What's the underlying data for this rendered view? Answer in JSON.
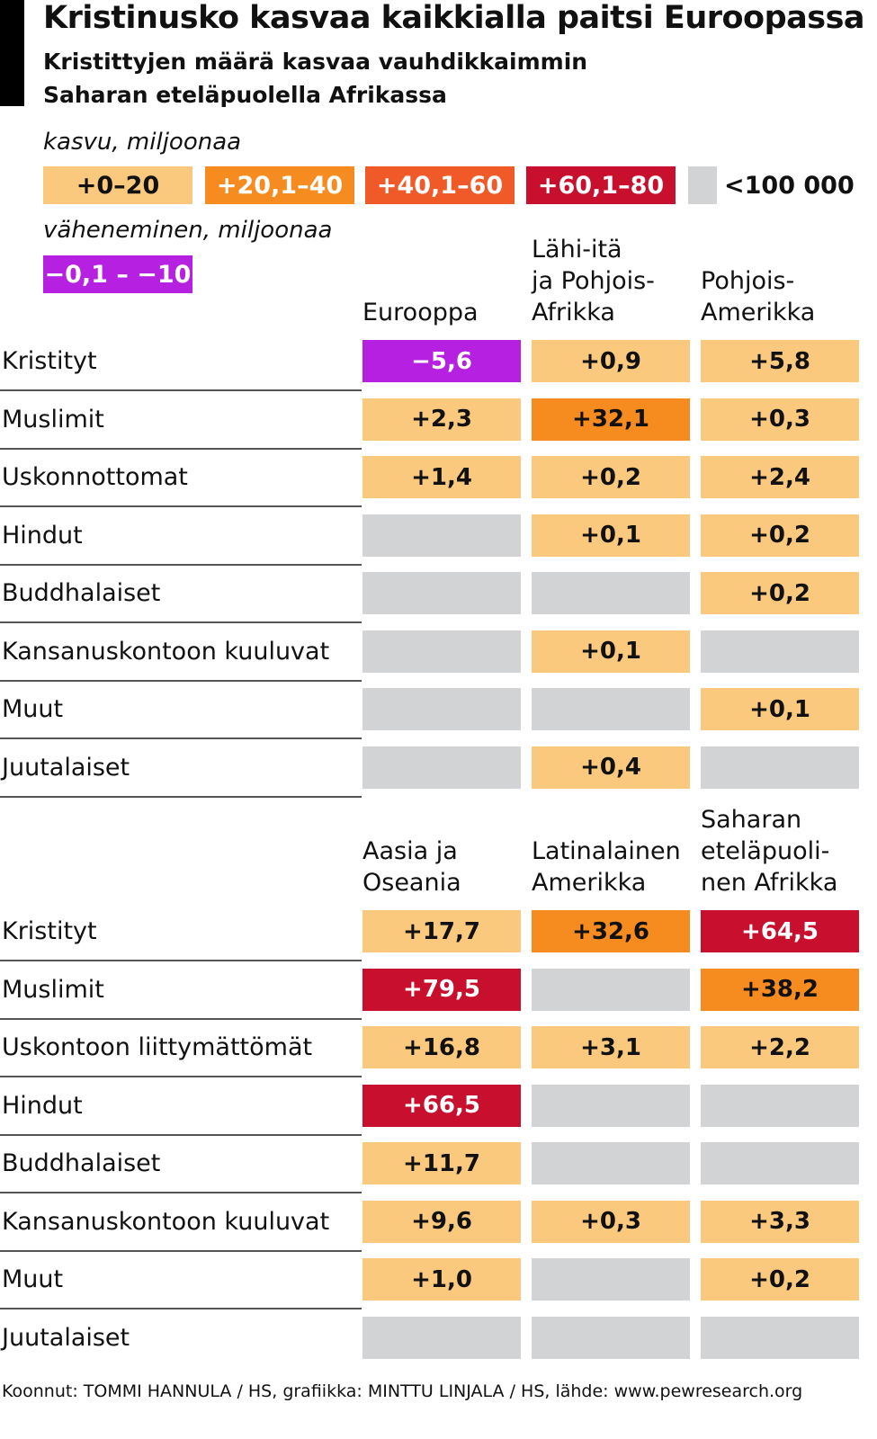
{
  "header": {
    "title": "Kristinusko kasvaa kaikkialla paitsi Euroopassa",
    "subtitle": [
      "Kristittyjen määrä kasvaa vauhdikkaimmin",
      "Saharan eteläpuolella Afrikassa"
    ]
  },
  "legend": {
    "growth_label": "kasvu, miljoonaa",
    "growth": [
      {
        "label": "+0–20",
        "color": "#fbc97e",
        "text_color": "#111"
      },
      {
        "label": "+20,1–40",
        "color": "#f68b1f",
        "text_color": "#fff"
      },
      {
        "label": "+40,1–60",
        "color": "#f05a28",
        "text_color": "#fff"
      },
      {
        "label": "+60,1–80",
        "color": "#c8102e",
        "text_color": "#fff"
      }
    ],
    "small": {
      "label": "<100 000",
      "color": "#d1d3d4"
    },
    "decline_label": "väheneminen, miljoonaa",
    "decline": [
      {
        "label": "−0,1 – −10",
        "color": "#b620e0",
        "text_color": "#fff"
      }
    ]
  },
  "sections": [
    {
      "columns": [
        [
          "Eurooppa"
        ],
        [
          "Lähi-itä",
          "ja Pohjois-",
          "Afrikka"
        ],
        [
          "Pohjois-",
          "Amerikka"
        ]
      ],
      "rows": [
        {
          "label": "Kristityt",
          "cells": [
            {
              "text": "−5,6",
              "color": "#b620e0",
              "text_color": "#fff"
            },
            {
              "text": "+0,9",
              "color": "#fbc97e"
            },
            {
              "text": "+5,8",
              "color": "#fbc97e"
            }
          ]
        },
        {
          "label": "Muslimit",
          "cells": [
            {
              "text": "+2,3",
              "color": "#fbc97e"
            },
            {
              "text": "+32,1",
              "color": "#f68b1f"
            },
            {
              "text": "+0,3",
              "color": "#fbc97e"
            }
          ]
        },
        {
          "label": "Uskonnottomat",
          "cells": [
            {
              "text": "+1,4",
              "color": "#fbc97e"
            },
            {
              "text": "+0,2",
              "color": "#fbc97e"
            },
            {
              "text": "+2,4",
              "color": "#fbc97e"
            }
          ]
        },
        {
          "label": "Hindut",
          "cells": [
            {
              "color": "#d1d3d4"
            },
            {
              "text": "+0,1",
              "color": "#fbc97e"
            },
            {
              "text": "+0,2",
              "color": "#fbc97e"
            }
          ]
        },
        {
          "label": "Buddhalaiset",
          "cells": [
            {
              "color": "#d1d3d4"
            },
            {
              "color": "#d1d3d4"
            },
            {
              "text": "+0,2",
              "color": "#fbc97e"
            }
          ]
        },
        {
          "label": "Kansanuskontoon kuuluvat",
          "cells": [
            {
              "color": "#d1d3d4"
            },
            {
              "text": "+0,1",
              "color": "#fbc97e"
            },
            {
              "color": "#d1d3d4"
            }
          ]
        },
        {
          "label": "Muut",
          "cells": [
            {
              "color": "#d1d3d4"
            },
            {
              "color": "#d1d3d4"
            },
            {
              "text": "+0,1",
              "color": "#fbc97e"
            }
          ]
        },
        {
          "label": "Juutalaiset",
          "cells": [
            {
              "color": "#d1d3d4"
            },
            {
              "text": "+0,4",
              "color": "#fbc97e"
            },
            {
              "color": "#d1d3d4"
            }
          ]
        }
      ]
    },
    {
      "columns": [
        [
          "Aasia ja",
          "Oseania"
        ],
        [
          "Latinalainen",
          "Amerikka"
        ],
        [
          "Saharan",
          "eteläpuoli-",
          "nen Afrikka"
        ]
      ],
      "rows": [
        {
          "label": "Kristityt",
          "cells": [
            {
              "text": "+17,7",
              "color": "#fbc97e"
            },
            {
              "text": "+32,6",
              "color": "#f68b1f"
            },
            {
              "text": "+64,5",
              "color": "#c8102e",
              "text_color": "#fff"
            }
          ]
        },
        {
          "label": "Muslimit",
          "cells": [
            {
              "text": "+79,5",
              "color": "#c8102e",
              "text_color": "#fff"
            },
            {
              "color": "#d1d3d4"
            },
            {
              "text": "+38,2",
              "color": "#f68b1f"
            }
          ]
        },
        {
          "label": "Uskontoon liittymättömät",
          "cells": [
            {
              "text": "+16,8",
              "color": "#fbc97e"
            },
            {
              "text": "+3,1",
              "color": "#fbc97e"
            },
            {
              "text": "+2,2",
              "color": "#fbc97e"
            }
          ]
        },
        {
          "label": "Hindut",
          "cells": [
            {
              "text": "+66,5",
              "color": "#c8102e",
              "text_color": "#fff"
            },
            {
              "color": "#d1d3d4"
            },
            {
              "color": "#d1d3d4"
            }
          ]
        },
        {
          "label": "Buddhalaiset",
          "cells": [
            {
              "text": "+11,7",
              "color": "#fbc97e"
            },
            {
              "color": "#d1d3d4"
            },
            {
              "color": "#d1d3d4"
            }
          ]
        },
        {
          "label": "Kansanuskontoon kuuluvat",
          "cells": [
            {
              "text": "+9,6",
              "color": "#fbc97e"
            },
            {
              "text": "+0,3",
              "color": "#fbc97e"
            },
            {
              "text": "+3,3",
              "color": "#fbc97e"
            }
          ]
        },
        {
          "label": "Muut",
          "cells": [
            {
              "text": "+1,0",
              "color": "#fbc97e"
            },
            {
              "color": "#d1d3d4"
            },
            {
              "text": "+0,2",
              "color": "#fbc97e"
            }
          ]
        },
        {
          "label": "Juutalaiset",
          "cells": [
            {
              "color": "#d1d3d4"
            },
            {
              "color": "#d1d3d4"
            },
            {
              "color": "#d1d3d4"
            }
          ]
        }
      ]
    }
  ],
  "footer": "Koonnut: TOMMI HANNULA / HS, grafiikka: MINTTU LINJALA / HS, lähde: www.pewresearch.org"
}
